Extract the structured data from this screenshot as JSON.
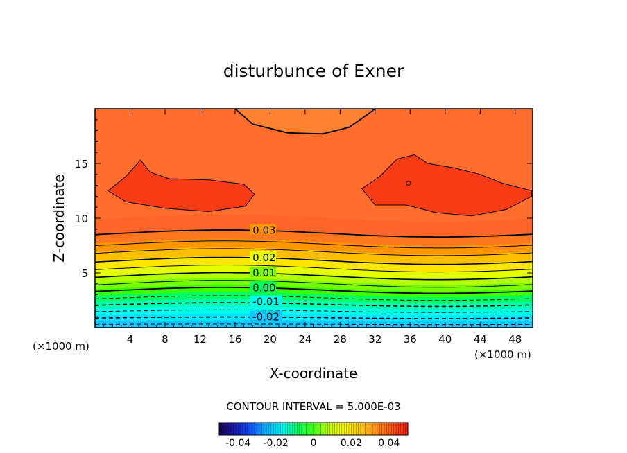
{
  "chart_data": {
    "type": "contour",
    "title": "disturbunce of Exner",
    "xlabel": "X-coordinate",
    "ylabel": "Z-coordinate",
    "x_unit_left": "(×1000 m)",
    "x_unit_right": "(×1000 m)",
    "xlim": [
      0,
      50
    ],
    "ylim": [
      0,
      20
    ],
    "x_ticks": [
      4,
      8,
      12,
      16,
      20,
      24,
      28,
      32,
      36,
      40,
      44,
      48
    ],
    "y_ticks": [
      5,
      10,
      15
    ],
    "contour_interval_text": "CONTOUR INTERVAL = 5.000E-03",
    "contour_labels": [
      {
        "text": "0.03",
        "x": 18.0,
        "z": 8.6
      },
      {
        "text": "0.02",
        "x": 18.0,
        "z": 6.1
      },
      {
        "text": "0.01",
        "x": 18.0,
        "z": 4.7
      },
      {
        "text": "0.00",
        "x": 18.0,
        "z": 3.4
      },
      {
        "text": "-0.01",
        "x": 18.0,
        "z": 2.2
      },
      {
        "text": "-0.02",
        "x": 18.0,
        "z": 0.9
      }
    ],
    "color_scale": {
      "min": -0.05,
      "max": 0.05,
      "tick_labels": [
        "-0.04",
        "-0.02",
        "0",
        "0.02",
        "0.04"
      ],
      "tick_values": [
        -0.04,
        -0.02,
        0,
        0.02,
        0.04
      ],
      "stops": [
        "#1a0050",
        "#1e1eb4",
        "#0a50ff",
        "#00b4ff",
        "#00ffff",
        "#00ff64",
        "#3cff00",
        "#c8ff00",
        "#ffff00",
        "#ffc800",
        "#ff8c00",
        "#ff5a1e",
        "#f51e0a"
      ]
    },
    "bands": [
      {
        "z": 0.0,
        "color": "#1e8cff"
      },
      {
        "z": 0.6,
        "color": "#10c8ff"
      },
      {
        "z": 1.2,
        "color": "#00e6ff"
      },
      {
        "z": 1.8,
        "color": "#00ffe8"
      },
      {
        "z": 2.4,
        "color": "#00ffb0"
      },
      {
        "z": 3.0,
        "color": "#00ff60"
      },
      {
        "z": 3.6,
        "color": "#3cff00"
      },
      {
        "z": 4.2,
        "color": "#78ff00"
      },
      {
        "z": 4.8,
        "color": "#b4ff00"
      },
      {
        "z": 5.4,
        "color": "#e6ff00"
      },
      {
        "z": 6.2,
        "color": "#ffe600"
      },
      {
        "z": 7.0,
        "color": "#ffbe00"
      },
      {
        "z": 7.8,
        "color": "#ff9600"
      },
      {
        "z": 8.7,
        "color": "#ff781e"
      },
      {
        "z": 10.0,
        "color": "#ff6428"
      },
      {
        "z": 16.0,
        "color": "#ff6e2d"
      }
    ],
    "regions": [
      {
        "name": "max-left",
        "color": "#f53c14",
        "points": [
          [
            1.5,
            12.5
          ],
          [
            3.5,
            13.8
          ],
          [
            5.2,
            15.3
          ],
          [
            6.3,
            14.2
          ],
          [
            8.5,
            13.6
          ],
          [
            13,
            13.5
          ],
          [
            17,
            13.1
          ],
          [
            18.2,
            12.2
          ],
          [
            17.2,
            11.1
          ],
          [
            13,
            10.6
          ],
          [
            8,
            10.9
          ],
          [
            3.5,
            11.5
          ]
        ]
      },
      {
        "name": "max-right",
        "color": "#f53c14",
        "points": [
          [
            30.5,
            12.7
          ],
          [
            32.5,
            13.8
          ],
          [
            34.5,
            15.4
          ],
          [
            36.5,
            15.8
          ],
          [
            38,
            15.0
          ],
          [
            41,
            14.6
          ],
          [
            44,
            14.0
          ],
          [
            46.5,
            13.2
          ],
          [
            49.9,
            12.5
          ],
          [
            49.9,
            12.0
          ],
          [
            47,
            10.8
          ],
          [
            43,
            10.2
          ],
          [
            39,
            10.5
          ],
          [
            35.5,
            11.2
          ],
          [
            32,
            11.2
          ]
        ]
      },
      {
        "name": "min-top",
        "color": "#ff8232",
        "points": [
          [
            16,
            20
          ],
          [
            18,
            18.6
          ],
          [
            22,
            17.8
          ],
          [
            26,
            17.7
          ],
          [
            29,
            18.3
          ],
          [
            31,
            19.4
          ],
          [
            32,
            20
          ]
        ]
      }
    ],
    "contour_lines": [
      {
        "z": 0.3,
        "dashed": true,
        "weight": 1.0
      },
      {
        "z": 0.9,
        "dashed": true,
        "weight": 1.6
      },
      {
        "z": 1.5,
        "dashed": true,
        "weight": 1.0
      },
      {
        "z": 2.1,
        "dashed": true,
        "weight": 1.6
      },
      {
        "z": 2.7,
        "dashed": true,
        "weight": 1.0
      },
      {
        "z": 3.4,
        "dashed": false,
        "weight": 1.8
      },
      {
        "z": 4.0,
        "dashed": false,
        "weight": 1.0
      },
      {
        "z": 4.7,
        "dashed": false,
        "weight": 1.6
      },
      {
        "z": 5.4,
        "dashed": false,
        "weight": 1.0
      },
      {
        "z": 6.1,
        "dashed": false,
        "weight": 1.6
      },
      {
        "z": 6.9,
        "dashed": false,
        "weight": 1.0
      },
      {
        "z": 7.6,
        "dashed": false,
        "weight": 1.0
      },
      {
        "z": 8.6,
        "dashed": false,
        "weight": 1.8
      }
    ]
  }
}
